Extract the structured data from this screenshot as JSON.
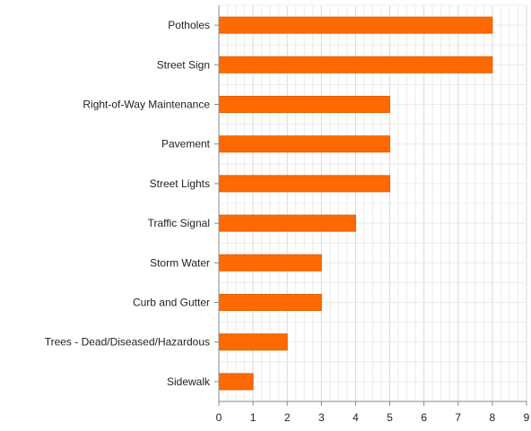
{
  "chart_data": {
    "type": "bar",
    "orientation": "horizontal",
    "categories": [
      "Potholes",
      "Street Sign",
      "Right-of-Way Maintenance",
      "Pavement",
      "Street Lights",
      "Traffic Signal",
      "Storm Water",
      "Curb and Gutter",
      "Trees - Dead/Diseased/Hazardous",
      "Sidewalk"
    ],
    "values": [
      8,
      8,
      5,
      5,
      5,
      4,
      3,
      3,
      2,
      1
    ],
    "xlim": [
      0,
      9
    ],
    "x_ticks": [
      "0",
      "1",
      "2",
      "3",
      "4",
      "5",
      "6",
      "7",
      "8",
      "9"
    ],
    "title": "",
    "xlabel": "",
    "ylabel": "",
    "grid": true,
    "minor_grid_per_unit": 4,
    "legend": "none",
    "colors": {
      "bar": "#ff6a00",
      "bar_edge": "#e85d00",
      "grid_major": "#d9d9d9",
      "grid_minor": "#ececec",
      "axis": "#888888",
      "text": "#222222"
    }
  }
}
